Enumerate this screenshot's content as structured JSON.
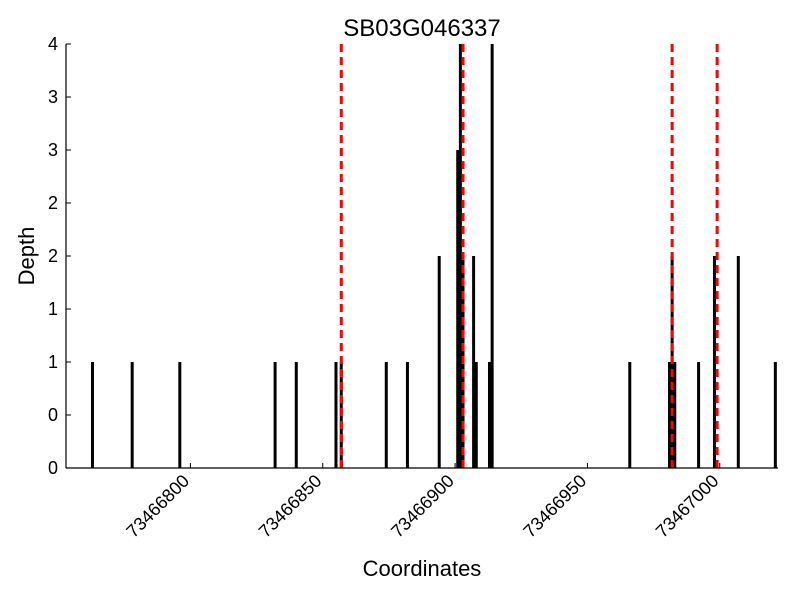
{
  "chart_data": {
    "type": "bar",
    "title": "SB03G046337",
    "xlabel": "Coordinates",
    "ylabel": "Depth",
    "xlim": [
      73466753,
      73467022
    ],
    "ylim": [
      0,
      4
    ],
    "x_ticks": [
      {
        "value": 73466800,
        "label": "73466800"
      },
      {
        "value": 73466850,
        "label": "73466850"
      },
      {
        "value": 73466900,
        "label": "73466900"
      },
      {
        "value": 73466950,
        "label": "73466950"
      },
      {
        "value": 73467000,
        "label": "73467000"
      }
    ],
    "y_ticks": [
      {
        "value": 0,
        "label": "0"
      },
      {
        "value": 0.5,
        "label": "0"
      },
      {
        "value": 1,
        "label": "1"
      },
      {
        "value": 1.5,
        "label": "1"
      },
      {
        "value": 2,
        "label": "2"
      },
      {
        "value": 2.5,
        "label": "2"
      },
      {
        "value": 3,
        "label": "3"
      },
      {
        "value": 3.5,
        "label": "3"
      },
      {
        "value": 4,
        "label": "4"
      }
    ],
    "bars": [
      {
        "x": 73466763,
        "y": 1
      },
      {
        "x": 73466778,
        "y": 1
      },
      {
        "x": 73466796,
        "y": 1
      },
      {
        "x": 73466832,
        "y": 1
      },
      {
        "x": 73466840,
        "y": 1
      },
      {
        "x": 73466855,
        "y": 1
      },
      {
        "x": 73466857,
        "y": 1
      },
      {
        "x": 73466874,
        "y": 1
      },
      {
        "x": 73466882,
        "y": 1
      },
      {
        "x": 73466894,
        "y": 2
      },
      {
        "x": 73466901,
        "y": 3
      },
      {
        "x": 73466902,
        "y": 4
      },
      {
        "x": 73466903,
        "y": 2
      },
      {
        "x": 73466907,
        "y": 2
      },
      {
        "x": 73466908,
        "y": 1
      },
      {
        "x": 73466913,
        "y": 1
      },
      {
        "x": 73466914,
        "y": 4
      },
      {
        "x": 73466966,
        "y": 1
      },
      {
        "x": 73466981,
        "y": 1
      },
      {
        "x": 73466982,
        "y": 2
      },
      {
        "x": 73466983,
        "y": 1
      },
      {
        "x": 73466992,
        "y": 1
      },
      {
        "x": 73466998,
        "y": 2
      },
      {
        "x": 73467007,
        "y": 2
      },
      {
        "x": 73467021,
        "y": 1
      }
    ],
    "vertical_markers": [
      73466857,
      73466903,
      73466982,
      73466999
    ],
    "colors": {
      "bar_fill": "#000000",
      "marker": "#ff0000",
      "axis": "#000000",
      "background": "#ffffff"
    },
    "grid": false,
    "legend": "none"
  }
}
